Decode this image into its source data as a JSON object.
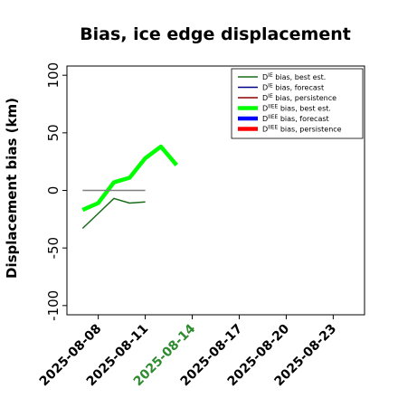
{
  "chart_data": {
    "type": "line",
    "title": "Bias, ice edge displacement",
    "xlabel": "",
    "ylabel": "Displacement bias (km)",
    "ylim": [
      -108,
      108
    ],
    "xlim": [
      "2025-08-06",
      "2025-08-25"
    ],
    "yticks": [
      100,
      50,
      0,
      -50,
      -100
    ],
    "xticks": [
      "2025-08-08",
      "2025-08-11",
      "2025-08-14",
      "2025-08-17",
      "2025-08-20",
      "2025-08-23"
    ],
    "highlighted_xtick": "2025-08-14",
    "colors": {
      "highlight_tick": "#2e8b2e",
      "axis": "#000000"
    },
    "legend_position": "top-right",
    "grid": false,
    "series": [
      {
        "name": "D^IE bias, best est.",
        "color": "#1a6b1a",
        "width": 1.5,
        "x": [
          "2025-08-07",
          "2025-08-08",
          "2025-08-09",
          "2025-08-10",
          "2025-08-11"
        ],
        "y": [
          -33,
          -20,
          -7,
          -11,
          -10
        ]
      },
      {
        "name": "D^IE bias, forecast",
        "color": "#00008b",
        "width": 1.5,
        "x": [],
        "y": []
      },
      {
        "name": "D^IE bias, persistence",
        "color": "#8b0000",
        "width": 1.5,
        "x": [],
        "y": []
      },
      {
        "name": "D^IIEE bias, best est.",
        "color": "#00ff00",
        "width": 4.5,
        "x": [
          "2025-08-07",
          "2025-08-08",
          "2025-08-09",
          "2025-08-10",
          "2025-08-11",
          "2025-08-12",
          "2025-08-13"
        ],
        "y": [
          -17,
          -11,
          7,
          11,
          28,
          38,
          22
        ]
      },
      {
        "name": "D^IIEE bias, forecast",
        "color": "#0000ff",
        "width": 4.5,
        "x": [],
        "y": []
      },
      {
        "name": "D^IIEE bias, persistence",
        "color": "#ff0000",
        "width": 4.5,
        "x": [],
        "y": []
      },
      {
        "name": "",
        "color": "#808080",
        "width": 1.5,
        "x": [
          "2025-08-07",
          "2025-08-11"
        ],
        "y": [
          0,
          0
        ]
      }
    ],
    "legend_entries": [
      {
        "main": "D",
        "sup": "IE",
        "rest": " bias, best est.",
        "color": "#1a6b1a",
        "width": 1.5
      },
      {
        "main": "D",
        "sup": "IE",
        "rest": " bias, forecast",
        "color": "#00008b",
        "width": 1.5
      },
      {
        "main": "D",
        "sup": "IE",
        "rest": " bias, persistence",
        "color": "#8b0000",
        "width": 1.5
      },
      {
        "main": "D",
        "sup": "IIEE",
        "rest": " bias, best est.",
        "color": "#00ff00",
        "width": 4.5
      },
      {
        "main": "D",
        "sup": "IIEE",
        "rest": " bias, forecast",
        "color": "#0000ff",
        "width": 4.5
      },
      {
        "main": "D",
        "sup": "IIEE",
        "rest": " bias, persistence",
        "color": "#ff0000",
        "width": 4.5
      }
    ]
  }
}
